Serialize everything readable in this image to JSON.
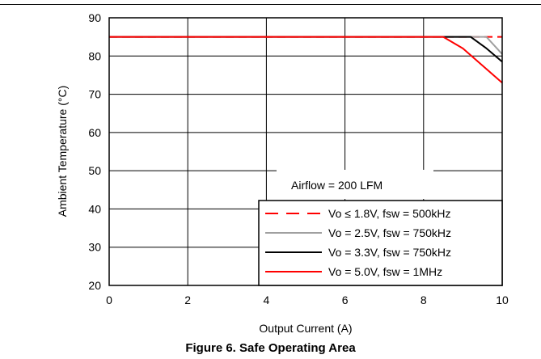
{
  "caption": "Figure 6. Safe Operating Area",
  "chart_data": {
    "type": "line",
    "xlabel": "Output Current (A)",
    "ylabel": "Ambient Temperature (°C)",
    "xlim": [
      0,
      10
    ],
    "ylim": [
      20,
      90
    ],
    "xticks": [
      0,
      2,
      4,
      6,
      8,
      10
    ],
    "yticks": [
      20,
      30,
      40,
      50,
      60,
      70,
      80,
      90
    ],
    "grid": true,
    "legend_placement": "bottom-right",
    "annotation": "Airflow = 200 LFM",
    "series": [
      {
        "name": "Vo ≤ 1.8V, fsw = 500kHz",
        "color": "#ff0000",
        "dash": true,
        "x": [
          0,
          10
        ],
        "y": [
          85,
          85
        ]
      },
      {
        "name": "Vo = 2.5V, fsw = 750kHz",
        "color": "#a0a0a0",
        "dash": false,
        "x": [
          0,
          9.6,
          10
        ],
        "y": [
          85,
          85,
          80.5
        ]
      },
      {
        "name": "Vo = 3.3V, fsw = 750kHz",
        "color": "#000000",
        "dash": false,
        "x": [
          0,
          9.2,
          9.6,
          10
        ],
        "y": [
          85,
          85,
          82,
          78.5
        ]
      },
      {
        "name": "Vo = 5.0V, fsw = 1MHz",
        "color": "#ff0000",
        "dash": false,
        "x": [
          0,
          8.5,
          9,
          10
        ],
        "y": [
          85,
          85,
          82,
          73
        ]
      }
    ]
  }
}
